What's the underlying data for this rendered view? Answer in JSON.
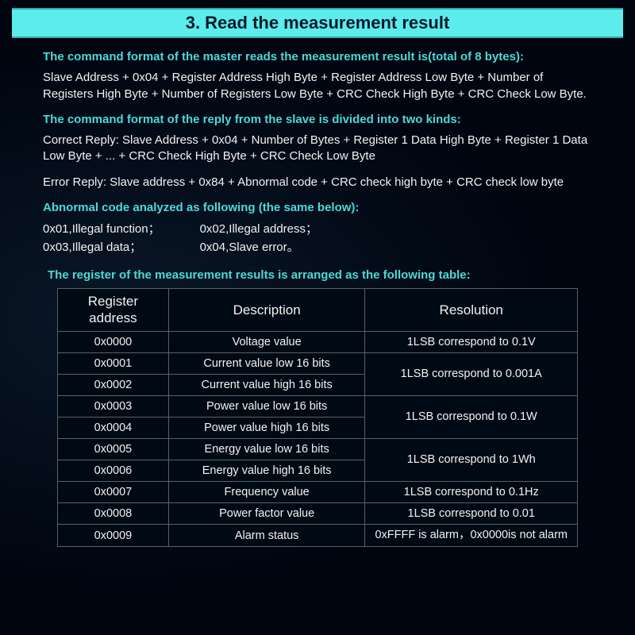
{
  "colors": {
    "teal": "#4dd8d8",
    "header_bg": "#5cecec",
    "header_text": "#0a1a2a",
    "body_text": "#f2f2f2",
    "border": "#5a5f66",
    "page_bg": "#000510"
  },
  "header": {
    "title": "3. Read the measurement result"
  },
  "sections": {
    "master_heading": "The command format of the master reads the measurement result is(total of 8 bytes):",
    "master_body": "Slave Address + 0x04 + Register Address High Byte + Register Address Low Byte + Number of Registers High Byte + Number of Registers Low Byte + CRC Check High Byte + CRC Check Low Byte.",
    "slave_heading": "The command format of the reply from the slave is divided into two kinds:",
    "correct_reply": "Correct Reply: Slave Address + 0x04 + Number of Bytes + Register 1 Data High Byte + Register 1 Data Low Byte + ... + CRC Check High Byte + CRC Check Low Byte",
    "error_reply": "Error Reply: Slave address + 0x84 + Abnormal code + CRC check high byte + CRC check low byte",
    "abnormal_heading": "Abnormal code analyzed as following (the same below):",
    "codes": {
      "c1": "0x01,Illegal function；",
      "c2": "0x02,Illegal address；",
      "c3": "0x03,Illegal data；",
      "c4": "0x04,Slave error。"
    },
    "table_intro": "The register of the measurement results is arranged as the following table:"
  },
  "table": {
    "headers": {
      "register": "Register address",
      "description": "Description",
      "resolution": "Resolution"
    },
    "rows": [
      {
        "addr": "0x0000",
        "desc": "Voltage value",
        "res": "1LSB correspond to 0.1V",
        "rowspan": 1
      },
      {
        "addr": "0x0001",
        "desc": "Current value low 16 bits",
        "res": "1LSB correspond to 0.001A",
        "rowspan": 2
      },
      {
        "addr": "0x0002",
        "desc": "Current value high 16 bits"
      },
      {
        "addr": "0x0003",
        "desc": "Power value low 16 bits",
        "res": "1LSB correspond to 0.1W",
        "rowspan": 2
      },
      {
        "addr": "0x0004",
        "desc": "Power value high 16 bits"
      },
      {
        "addr": "0x0005",
        "desc": "Energy value low 16 bits",
        "res": "1LSB correspond to 1Wh",
        "rowspan": 2
      },
      {
        "addr": "0x0006",
        "desc": "Energy value high 16 bits"
      },
      {
        "addr": "0x0007",
        "desc": "Frequency value",
        "res": "1LSB correspond to 0.1Hz",
        "rowspan": 1
      },
      {
        "addr": "0x0008",
        "desc": "Power factor value",
        "res": "1LSB correspond to 0.01",
        "rowspan": 1
      },
      {
        "addr": "0x0009",
        "desc": "Alarm status",
        "res": "0xFFFF is alarm，0x0000is not alarm",
        "rowspan": 1
      }
    ]
  }
}
